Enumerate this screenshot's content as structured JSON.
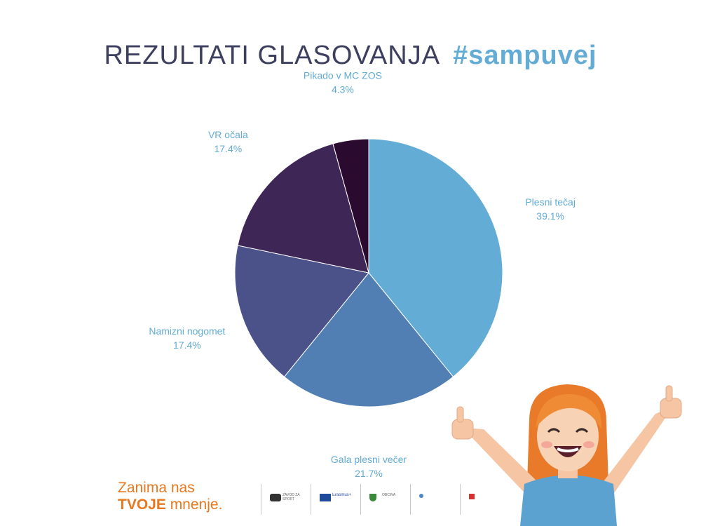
{
  "header": {
    "title_plain": "REZULTATI GLASOVANJA",
    "title_hashtag": "#sampuvej"
  },
  "chart_data": {
    "type": "pie",
    "title": "",
    "start": "12 o'clock, clockwise",
    "slices": [
      {
        "label": "Plesni tečaj",
        "value": 39.1,
        "value_label": "39.1%",
        "color": "#62acd6"
      },
      {
        "label": "Gala plesni večer",
        "value": 21.7,
        "value_label": "21.7%",
        "color": "#517fb3"
      },
      {
        "label": "Namizni nogomet",
        "value": 17.4,
        "value_label": "17.4%",
        "color": "#4b5289"
      },
      {
        "label": "VR očala",
        "value": 17.4,
        "value_label": "17.4%",
        "color": "#3e2757"
      },
      {
        "label": "Pikado v MC ZOS",
        "value": 4.3,
        "value_label": "4.3%",
        "color": "#2a0a2e"
      }
    ]
  },
  "footer": {
    "slogan_line1": "Zanima nas",
    "slogan_strong": "TVOJE",
    "slogan_rest": " mnenje.",
    "logos": [
      {
        "name": "zos",
        "text": "ZAVOD ZA SPORT",
        "color": "#333333"
      },
      {
        "name": "erasmus",
        "text": "Erasmus+",
        "color": "#1f4a9b"
      },
      {
        "name": "obcina",
        "text": "OBČINA",
        "color": "#3a8a3a"
      },
      {
        "name": "ministrstvo",
        "text": "",
        "color": "#4a86c8"
      },
      {
        "name": "urad",
        "text": "",
        "color": "#d93030"
      }
    ]
  }
}
